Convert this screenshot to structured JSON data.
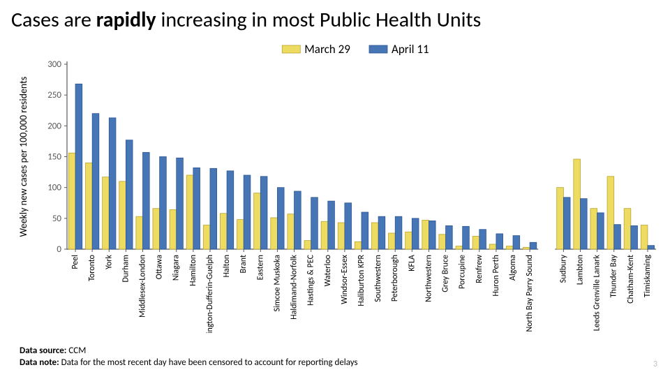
{
  "title_parts": [
    "Cases are ",
    "rapidly",
    " increasing in most Public Health Units"
  ],
  "footer": {
    "source_label": "Data source:",
    "source_value": "CCM",
    "note_label": "Data note:",
    "note_value": "Data for the most recent day have been censored to account for reporting delays"
  },
  "page_number": "3",
  "chart": {
    "type": "bar",
    "ylabel": "Weekly new cases per 100,000 residents",
    "ylabel_fontsize": 14,
    "legend": {
      "items": [
        {
          "label": "March 29",
          "color": "#eedb62",
          "border": "#b8a52e"
        },
        {
          "label": "April 11",
          "color": "#4676b6",
          "border": "#2e5692"
        }
      ],
      "fontsize": 17
    },
    "ylim": [
      0,
      300
    ],
    "ytick_step": 50,
    "tick_fontsize": 13,
    "xlabel_fontsize": 12,
    "axis_color": "#595959",
    "grid_color": "#d9d9d9",
    "groups": [
      {
        "categories": [
          "Peel",
          "Toronto",
          "York",
          "Durham",
          "Middlesex-London",
          "Ottawa",
          "Niagara",
          "Hamilton",
          "Wellington-Dufferin-Guelph",
          "Halton",
          "Brant",
          "Eastern",
          "Simcoe Muskoka",
          "Haldimand-Norfolk",
          "Hastings & PEC",
          "Waterloo",
          "Windsor-Essex",
          "Haliburton KPR",
          "Southwestern",
          "Peterborough",
          "KFLA",
          "Northwestern",
          "Grey Bruce",
          "Porcupine",
          "Renfrew",
          "Huron Perth",
          "Algoma",
          "North Bay Parry Sound"
        ],
        "series": [
          {
            "name": "March 29",
            "color": "#eedb62",
            "border": "#b8a52e",
            "values": [
              156,
              140,
              117,
              110,
              53,
              66,
              64,
              120,
              39,
              58,
              48,
              91,
              51,
              57,
              14,
              45,
              43,
              12,
              43,
              26,
              28,
              47,
              24,
              5,
              21,
              8,
              5,
              3
            ]
          },
          {
            "name": "April 11",
            "color": "#4676b6",
            "border": "#2e5692",
            "values": [
              268,
              220,
              213,
              177,
              157,
              150,
              148,
              132,
              131,
              127,
              120,
              118,
              100,
              94,
              84,
              78,
              75,
              60,
              53,
              53,
              50,
              46,
              38,
              37,
              32,
              25,
              22,
              11
            ]
          }
        ]
      },
      {
        "categories": [
          "Sudbury",
          "Lambton",
          "Leeds Grenville Lanark",
          "Thunder Bay",
          "Chatham-Kent",
          "Timiskaming"
        ],
        "series": [
          {
            "name": "March 29",
            "color": "#eedb62",
            "border": "#b8a52e",
            "values": [
              100,
              146,
              66,
              118,
              66,
              39
            ]
          },
          {
            "name": "April 11",
            "color": "#4676b6",
            "border": "#2e5692",
            "values": [
              84,
              82,
              59,
              40,
              38,
              6
            ]
          }
        ]
      }
    ]
  }
}
